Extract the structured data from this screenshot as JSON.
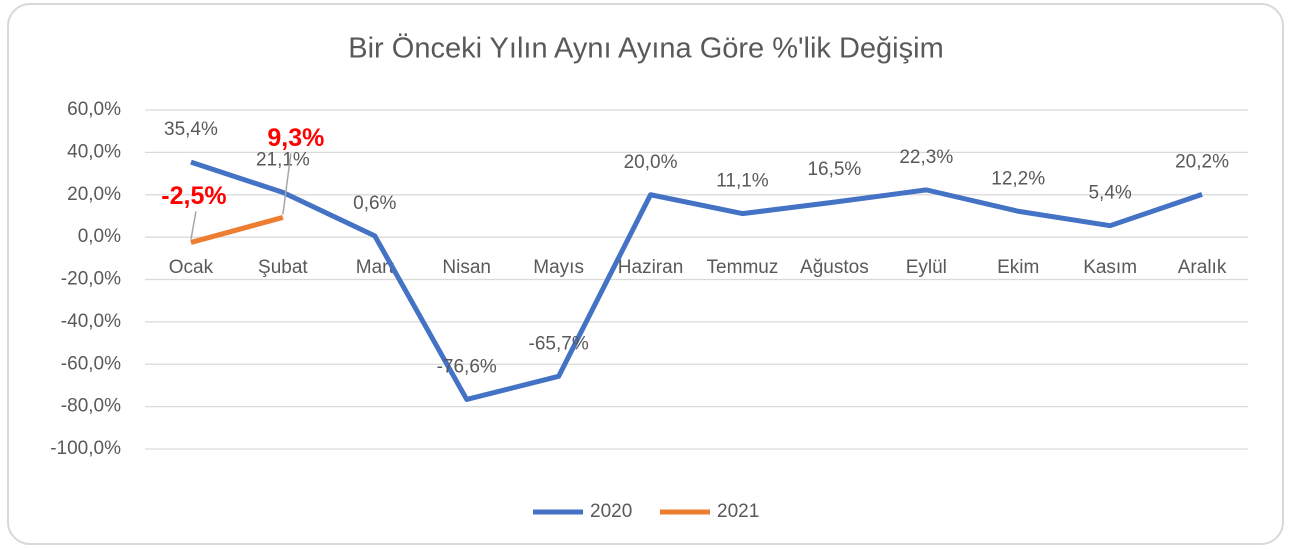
{
  "chart_data": {
    "type": "line",
    "title": "Bir Önceki Yılın Aynı Ayına Göre %'lik Değişim",
    "categories": [
      "Ocak",
      "Şubat",
      "Mart",
      "Nisan",
      "Mayıs",
      "Haziran",
      "Temmuz",
      "Ağustos",
      "Eylül",
      "Ekim",
      "Kasım",
      "Aralık"
    ],
    "series": [
      {
        "name": "2020",
        "color": "#4472c4",
        "values": [
          35.4,
          21.1,
          0.6,
          -76.6,
          -65.7,
          20.0,
          11.1,
          16.5,
          22.3,
          12.2,
          5.4,
          20.2
        ],
        "value_labels": [
          "35,4%",
          "21,1%",
          "0,6%",
          "-76,6%",
          "-65,7%",
          "20,0%",
          "11,1%",
          "16,5%",
          "22,3%",
          "12,2%",
          "5,4%",
          "20,2%"
        ]
      },
      {
        "name": "2021",
        "color": "#ed7d31",
        "values": [
          -2.5,
          9.3,
          null,
          null,
          null,
          null,
          null,
          null,
          null,
          null,
          null,
          null
        ],
        "value_labels": [
          "-2,5%",
          "9,3%",
          null,
          null,
          null,
          null,
          null,
          null,
          null,
          null,
          null,
          null
        ],
        "label_color": "#ff0000"
      }
    ],
    "ylim": [
      -100,
      60
    ],
    "yticks": [
      {
        "value": -100,
        "label": "-100,0%"
      },
      {
        "value": -80,
        "label": "-80,0%"
      },
      {
        "value": -60,
        "label": "-60,0%"
      },
      {
        "value": -40,
        "label": "-40,0%"
      },
      {
        "value": -20,
        "label": "-20,0%"
      },
      {
        "value": 0,
        "label": "0,0%"
      },
      {
        "value": 20,
        "label": "20,0%"
      },
      {
        "value": 40,
        "label": "40,0%"
      },
      {
        "value": 60,
        "label": "60,0%"
      }
    ],
    "grid": true,
    "legend": "bottom"
  }
}
